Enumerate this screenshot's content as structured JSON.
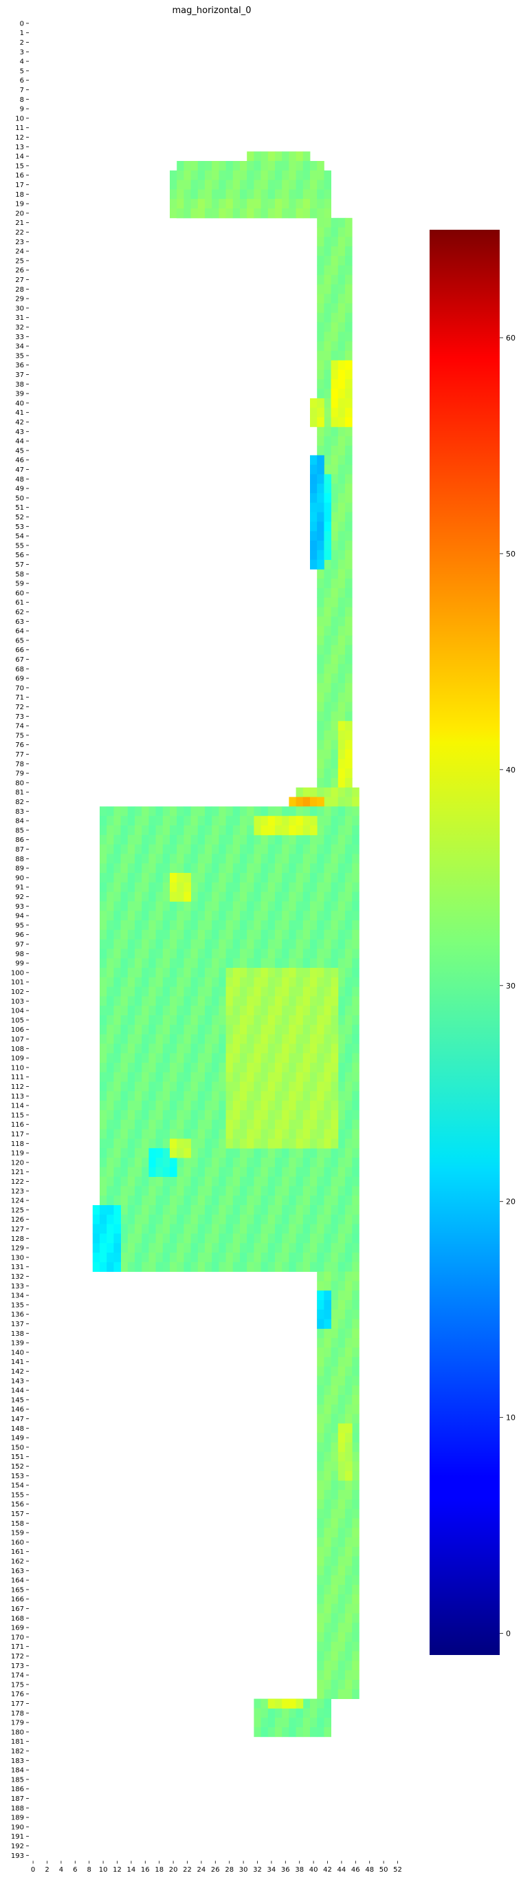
{
  "chart_data": {
    "type": "heatmap",
    "title": "mag_horizontal_0",
    "colormap": "jet",
    "y_tick_labels": [
      "0",
      "1",
      "2",
      "3",
      "4",
      "5",
      "6",
      "7",
      "8",
      "9",
      "10",
      "11",
      "12",
      "13",
      "14",
      "15",
      "16",
      "17",
      "18",
      "19",
      "20",
      "21",
      "22",
      "23",
      "24",
      "25",
      "26",
      "27",
      "28",
      "29",
      "30",
      "31",
      "32",
      "33",
      "34",
      "35",
      "36",
      "37",
      "38",
      "39",
      "40",
      "41",
      "42",
      "43",
      "44",
      "45",
      "46",
      "47",
      "48",
      "49",
      "50",
      "51",
      "52",
      "53",
      "54",
      "55",
      "56",
      "57",
      "58",
      "59",
      "60",
      "61",
      "62",
      "63",
      "64",
      "65",
      "66",
      "67",
      "68",
      "69",
      "70",
      "71",
      "72",
      "73",
      "74",
      "75",
      "76",
      "77",
      "78",
      "79",
      "80",
      "81",
      "82",
      "83",
      "84",
      "85",
      "86",
      "87",
      "88",
      "89",
      "90",
      "91",
      "92",
      "93",
      "94",
      "95",
      "96",
      "97",
      "98",
      "99",
      "100",
      "101",
      "102",
      "103",
      "104",
      "105",
      "106",
      "107",
      "108",
      "109",
      "110",
      "111",
      "112",
      "113",
      "114",
      "115",
      "116",
      "117",
      "118",
      "119",
      "120",
      "121",
      "122",
      "123",
      "124",
      "125",
      "126",
      "127",
      "128",
      "129",
      "130",
      "131",
      "132",
      "133",
      "134",
      "135",
      "136",
      "137",
      "138",
      "139",
      "140",
      "141",
      "142",
      "143",
      "144",
      "145",
      "146",
      "147",
      "148",
      "149",
      "150",
      "151",
      "152",
      "153",
      "154",
      "155",
      "156",
      "157",
      "158",
      "159",
      "160",
      "161",
      "162",
      "163",
      "164",
      "165",
      "166",
      "167",
      "168",
      "169",
      "170",
      "171",
      "172",
      "173",
      "174",
      "175",
      "176",
      "177",
      "178",
      "179",
      "180",
      "181",
      "182",
      "183",
      "184",
      "185",
      "186",
      "187",
      "188",
      "189",
      "190",
      "191",
      "192",
      "193"
    ],
    "x_tick_labels": [
      "0",
      "2",
      "4",
      "6",
      "8",
      "10",
      "12",
      "14",
      "16",
      "18",
      "20",
      "22",
      "24",
      "26",
      "28",
      "30",
      "32",
      "34",
      "36",
      "38",
      "40",
      "42",
      "44",
      "46",
      "48",
      "50",
      "52"
    ],
    "colorbar": {
      "vmin": -1,
      "vmax": 65,
      "tick_labels": [
        "0",
        "10",
        "20",
        "30",
        "40",
        "50",
        "60"
      ]
    },
    "regions": [
      {
        "rows": [
          14,
          14
        ],
        "cols": [
          31,
          39
        ],
        "value": 33
      },
      {
        "rows": [
          15,
          15
        ],
        "cols": [
          21,
          41
        ],
        "value": 32
      },
      {
        "rows": [
          16,
          20
        ],
        "cols": [
          20,
          42
        ],
        "value": 32
      },
      {
        "rows": [
          19,
          20
        ],
        "cols": [
          21,
          41
        ],
        "value": 33
      },
      {
        "rows": [
          21,
          80
        ],
        "cols": [
          41,
          45
        ],
        "value": 32
      },
      {
        "rows": [
          36,
          42
        ],
        "cols": [
          43,
          45
        ],
        "value": 39
      },
      {
        "rows": [
          40,
          42
        ],
        "cols": [
          40,
          41
        ],
        "value": 38
      },
      {
        "rows": [
          46,
          57
        ],
        "cols": [
          40,
          41
        ],
        "value": 20
      },
      {
        "rows": [
          48,
          56
        ],
        "cols": [
          42,
          42
        ],
        "value": 24
      },
      {
        "rows": [
          74,
          80
        ],
        "cols": [
          44,
          45
        ],
        "value": 38
      },
      {
        "rows": [
          81,
          82
        ],
        "cols": [
          38,
          46
        ],
        "value": 35
      },
      {
        "rows": [
          82,
          83
        ],
        "cols": [
          37,
          41
        ],
        "value": 45
      },
      {
        "rows": [
          83,
          131
        ],
        "cols": [
          10,
          46
        ],
        "value": 31
      },
      {
        "rows": [
          84,
          85
        ],
        "cols": [
          32,
          40
        ],
        "value": 38
      },
      {
        "rows": [
          90,
          92
        ],
        "cols": [
          20,
          22
        ],
        "value": 38
      },
      {
        "rows": [
          100,
          118
        ],
        "cols": [
          28,
          43
        ],
        "value": 35
      },
      {
        "rows": [
          119,
          121
        ],
        "cols": [
          17,
          20
        ],
        "value": 25
      },
      {
        "rows": [
          118,
          119
        ],
        "cols": [
          20,
          22
        ],
        "value": 37
      },
      {
        "rows": [
          125,
          131
        ],
        "cols": [
          9,
          12
        ],
        "value": 23
      },
      {
        "rows": [
          132,
          176
        ],
        "cols": [
          41,
          46
        ],
        "value": 32
      },
      {
        "rows": [
          134,
          137
        ],
        "cols": [
          41,
          42
        ],
        "value": 22
      },
      {
        "rows": [
          148,
          153
        ],
        "cols": [
          44,
          45
        ],
        "value": 36
      },
      {
        "rows": [
          177,
          180
        ],
        "cols": [
          32,
          42
        ],
        "value": 31
      },
      {
        "rows": [
          177,
          177
        ],
        "cols": [
          34,
          38
        ],
        "value": 38
      }
    ]
  }
}
